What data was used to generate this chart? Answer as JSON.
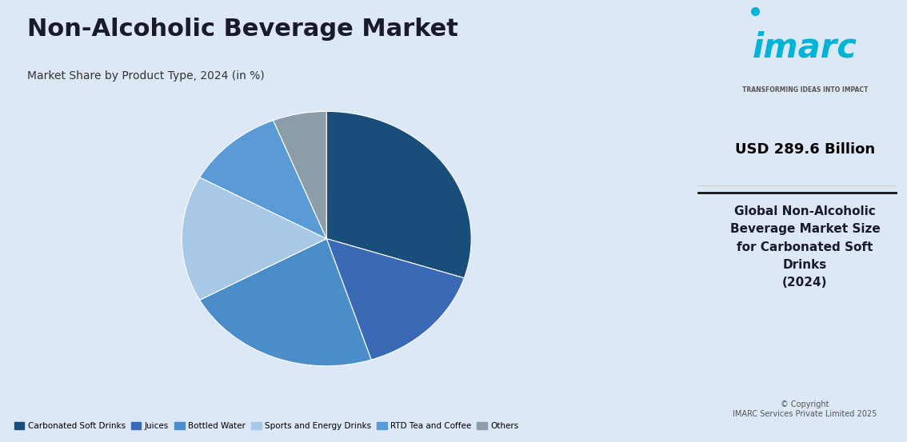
{
  "title": "Non-Alcoholic Beverage Market",
  "subtitle": "Market Share by Product Type, 2024 (in %)",
  "slices": [
    {
      "label": "Carbonated Soft Drinks",
      "value": 30,
      "color": "#1a4e7a"
    },
    {
      "label": "Juices",
      "value": 15,
      "color": "#3a6ab5"
    },
    {
      "label": "Bottled Water",
      "value": 22,
      "color": "#4a8dc8"
    },
    {
      "label": "Sports and Energy Drinks",
      "value": 16,
      "color": "#a8c8e8"
    },
    {
      "label": "RTD Tea and Coffee",
      "value": 11,
      "color": "#5b9bd5"
    },
    {
      "label": "Others",
      "value": 6,
      "color": "#8c9daa"
    }
  ],
  "bg_color": "#dce8f5",
  "right_panel_bg": "#ffffff",
  "usd_value": "USD 289.6 Billion",
  "right_text": "Global Non-Alcoholic\nBeverage Market Size\nfor Carbonated Soft\nDrinks\n(2024)",
  "copyright": "© Copyright\nIMARC Services Private Limited 2025",
  "imarc_tagline": "TRANSFORMING IDEAS INTO IMPACT",
  "start_angle": 90
}
